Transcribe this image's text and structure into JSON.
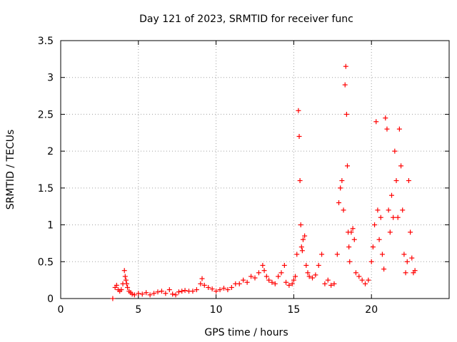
{
  "chart_data": {
    "type": "scatter",
    "title": "Day 121 of 2023, SRMTID for receiver func",
    "xlabel": "GPS time / hours",
    "ylabel": "SRMTID / TECUs",
    "xlim": [
      0,
      25
    ],
    "ylim": [
      0,
      3.5
    ],
    "x_ticks": [
      0,
      5,
      10,
      15,
      20
    ],
    "x_tick_labels": [
      "0",
      "5",
      "10",
      "15",
      "20"
    ],
    "y_ticks": [
      0,
      0.5,
      1,
      1.5,
      2,
      2.5,
      3,
      3.5
    ],
    "y_tick_labels": [
      "0",
      "0.5",
      "1",
      "1.5",
      "2",
      "2.5",
      "3",
      "3.5"
    ],
    "grid": true,
    "marker": "+",
    "color": "#ff0000",
    "series": [
      {
        "name": "SRMTID",
        "x": [
          3.35,
          3.5,
          3.6,
          3.7,
          3.8,
          3.9,
          4.0,
          4.1,
          4.15,
          4.2,
          4.25,
          4.3,
          4.4,
          4.5,
          4.6,
          4.75,
          5.0,
          5.25,
          5.5,
          5.75,
          6.0,
          6.25,
          6.5,
          6.75,
          7.0,
          7.2,
          7.4,
          7.6,
          7.8,
          8.0,
          8.25,
          8.5,
          8.75,
          9.0,
          9.1,
          9.25,
          9.5,
          9.75,
          10.0,
          10.25,
          10.5,
          10.75,
          11.0,
          11.25,
          11.5,
          11.75,
          12.0,
          12.25,
          12.5,
          12.75,
          13.0,
          13.1,
          13.25,
          13.4,
          13.6,
          13.8,
          14.0,
          14.2,
          14.4,
          14.5,
          14.7,
          14.9,
          15.0,
          15.1,
          15.2,
          15.3,
          15.35,
          15.4,
          15.45,
          15.5,
          15.55,
          15.6,
          15.7,
          15.8,
          15.9,
          16.0,
          16.2,
          16.4,
          16.6,
          16.8,
          17.0,
          17.2,
          17.4,
          17.6,
          17.8,
          17.9,
          18.0,
          18.1,
          18.2,
          18.3,
          18.35,
          18.4,
          18.45,
          18.5,
          18.55,
          18.6,
          18.7,
          18.8,
          18.9,
          19.0,
          19.2,
          19.4,
          19.6,
          19.8,
          20.0,
          20.1,
          20.2,
          20.3,
          20.4,
          20.5,
          20.6,
          20.7,
          20.8,
          20.9,
          21.0,
          21.1,
          21.2,
          21.3,
          21.4,
          21.5,
          21.6,
          21.7,
          21.8,
          21.9,
          22.0,
          22.1,
          22.2,
          22.3,
          22.4,
          22.5,
          22.6,
          22.7,
          22.8
        ],
        "y": [
          0.0,
          0.15,
          0.18,
          0.12,
          0.1,
          0.12,
          0.2,
          0.38,
          0.3,
          0.25,
          0.2,
          0.15,
          0.1,
          0.08,
          0.06,
          0.05,
          0.07,
          0.06,
          0.08,
          0.05,
          0.07,
          0.09,
          0.1,
          0.07,
          0.12,
          0.06,
          0.05,
          0.09,
          0.1,
          0.11,
          0.1,
          0.1,
          0.12,
          0.2,
          0.27,
          0.18,
          0.15,
          0.13,
          0.1,
          0.12,
          0.14,
          0.12,
          0.15,
          0.2,
          0.2,
          0.25,
          0.22,
          0.3,
          0.28,
          0.35,
          0.45,
          0.38,
          0.3,
          0.25,
          0.22,
          0.2,
          0.3,
          0.35,
          0.45,
          0.22,
          0.18,
          0.2,
          0.25,
          0.3,
          0.6,
          2.55,
          2.2,
          1.6,
          1.0,
          0.7,
          0.65,
          0.8,
          0.85,
          0.45,
          0.35,
          0.3,
          0.28,
          0.32,
          0.45,
          0.6,
          0.2,
          0.25,
          0.18,
          0.2,
          0.6,
          1.3,
          1.5,
          1.6,
          1.2,
          2.9,
          3.15,
          2.5,
          1.8,
          0.9,
          0.7,
          0.5,
          0.9,
          0.95,
          0.8,
          0.35,
          0.3,
          0.25,
          0.2,
          0.25,
          0.5,
          0.7,
          1.0,
          2.4,
          1.2,
          0.8,
          1.1,
          0.6,
          0.4,
          2.45,
          2.3,
          1.2,
          0.9,
          1.4,
          1.1,
          2.0,
          1.6,
          1.1,
          2.3,
          1.8,
          1.2,
          0.6,
          0.35,
          0.5,
          1.6,
          0.9,
          0.55,
          0.35,
          0.38
        ]
      }
    ]
  }
}
